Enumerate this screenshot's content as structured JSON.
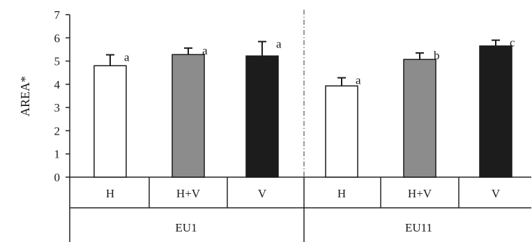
{
  "chart_data": {
    "type": "bar",
    "ylabel": "AREA*",
    "ylim": [
      0,
      7
    ],
    "yticks": [
      "0",
      "1",
      "2",
      "3",
      "4",
      "5",
      "6",
      "7"
    ],
    "categories": [
      "H",
      "H+V",
      "V",
      "H",
      "H+V",
      "V"
    ],
    "groups": [
      {
        "label": "EU1",
        "members": [
          0,
          1,
          2
        ]
      },
      {
        "label": "EU11",
        "members": [
          3,
          4,
          5
        ]
      }
    ],
    "values": [
      4.8,
      5.28,
      5.22,
      3.93,
      5.07,
      5.65
    ],
    "errors": [
      0.47,
      0.28,
      0.62,
      0.35,
      0.28,
      0.25
    ],
    "significance": [
      "a",
      "a",
      "a",
      "a",
      "b",
      "c"
    ],
    "bar_colors": [
      "#ffffff",
      "#8c8c8c",
      "#1c1c1c",
      "#ffffff",
      "#8c8c8c",
      "#1c1c1c"
    ],
    "grid": false,
    "group_separator": "dash-dot"
  }
}
